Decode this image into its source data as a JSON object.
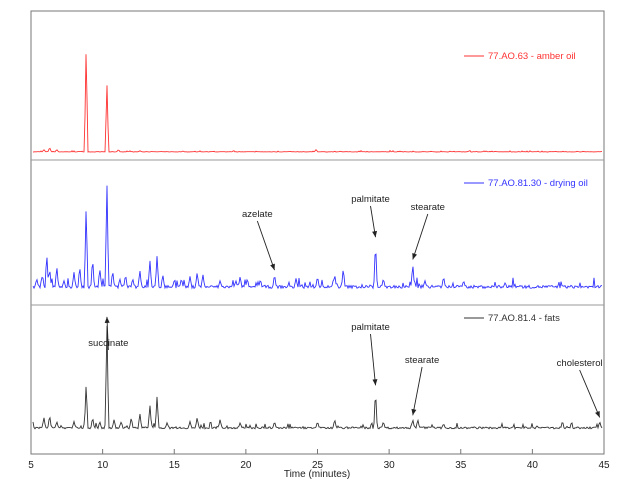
{
  "chart_data": {
    "type": "line",
    "title": "",
    "xlabel": "Time (minutes)",
    "ylabel": "",
    "xlim": [
      5,
      45
    ],
    "xticks": [
      5,
      10,
      15,
      20,
      25,
      30,
      35,
      40,
      45
    ],
    "grid": false,
    "legend_placement": "top-right of each trace",
    "series": [
      {
        "name": "77.AO.63 - amber oil",
        "color": "#ff3333",
        "baseline": 0.03,
        "noise": 0.01,
        "peaks": [
          [
            5.9,
            0.02
          ],
          [
            6.3,
            0.04
          ],
          [
            6.8,
            0.02
          ],
          [
            8.85,
            1.0
          ],
          [
            10.3,
            0.65
          ],
          [
            11.1,
            0.02
          ],
          [
            12.6,
            0.01
          ],
          [
            24.9,
            0.02
          ]
        ],
        "annotations": []
      },
      {
        "name": "77.AO.81.30 - drying oil",
        "color": "#3333ff",
        "baseline": 0.03,
        "noise": 0.08,
        "peaks": [
          [
            5.4,
            0.08
          ],
          [
            5.8,
            0.12
          ],
          [
            6.1,
            0.32
          ],
          [
            6.3,
            0.18
          ],
          [
            6.8,
            0.2
          ],
          [
            7.3,
            0.06
          ],
          [
            8.0,
            0.14
          ],
          [
            8.4,
            0.2
          ],
          [
            8.85,
            0.78
          ],
          [
            9.3,
            0.28
          ],
          [
            9.8,
            0.18
          ],
          [
            10.3,
            1.0
          ],
          [
            10.7,
            0.16
          ],
          [
            11.2,
            0.08
          ],
          [
            11.6,
            0.12
          ],
          [
            12.1,
            0.08
          ],
          [
            12.6,
            0.16
          ],
          [
            13.3,
            0.26
          ],
          [
            13.8,
            0.3
          ],
          [
            14.2,
            0.12
          ],
          [
            15.0,
            0.06
          ],
          [
            15.5,
            0.08
          ],
          [
            16.1,
            0.1
          ],
          [
            16.6,
            0.14
          ],
          [
            17.0,
            0.12
          ],
          [
            18.2,
            0.06
          ],
          [
            19.3,
            0.06
          ],
          [
            19.6,
            0.1
          ],
          [
            20.1,
            0.08
          ],
          [
            22.0,
            0.12
          ],
          [
            23.5,
            0.08
          ],
          [
            25.0,
            0.1
          ],
          [
            26.2,
            0.12
          ],
          [
            26.8,
            0.18
          ],
          [
            29.05,
            0.43
          ],
          [
            29.6,
            0.08
          ],
          [
            31.65,
            0.22
          ],
          [
            32.5,
            0.06
          ],
          [
            33.8,
            0.1
          ],
          [
            35.2,
            0.06
          ],
          [
            38.1,
            0.04
          ]
        ],
        "annotations": [
          {
            "label": "azelate",
            "x": 22.0,
            "label_x": 20.8
          },
          {
            "label": "palmitate",
            "x": 29.05,
            "label_x": 28.7
          },
          {
            "label": "stearate",
            "x": 31.65,
            "label_x": 32.7
          }
        ]
      },
      {
        "name": "77.AO.81.4 - fats",
        "color": "#333333",
        "baseline": 0.02,
        "noise": 0.05,
        "peaks": [
          [
            5.9,
            0.1
          ],
          [
            6.3,
            0.12
          ],
          [
            6.8,
            0.06
          ],
          [
            8.0,
            0.06
          ],
          [
            8.85,
            0.42
          ],
          [
            9.3,
            0.1
          ],
          [
            9.8,
            0.06
          ],
          [
            10.3,
            1.0
          ],
          [
            10.8,
            0.08
          ],
          [
            11.3,
            0.06
          ],
          [
            12.0,
            0.1
          ],
          [
            12.6,
            0.14
          ],
          [
            13.3,
            0.22
          ],
          [
            13.8,
            0.3
          ],
          [
            14.5,
            0.05
          ],
          [
            16.1,
            0.06
          ],
          [
            16.6,
            0.1
          ],
          [
            18.2,
            0.08
          ],
          [
            19.6,
            0.05
          ],
          [
            22.0,
            0.06
          ],
          [
            25.0,
            0.06
          ],
          [
            26.2,
            0.08
          ],
          [
            29.05,
            0.36
          ],
          [
            29.6,
            0.06
          ],
          [
            31.65,
            0.08
          ],
          [
            32.0,
            0.08
          ],
          [
            33.8,
            0.04
          ],
          [
            44.7,
            0.06
          ]
        ],
        "annotations": [
          {
            "label": "succinate",
            "x": 10.3,
            "label_x": 10.4
          },
          {
            "label": "palmitate",
            "x": 29.05,
            "label_x": 28.7
          },
          {
            "label": "stearate",
            "x": 31.65,
            "label_x": 32.3
          },
          {
            "label": "cholesterol",
            "x": 44.7,
            "label_x": 43.3
          }
        ]
      }
    ]
  }
}
